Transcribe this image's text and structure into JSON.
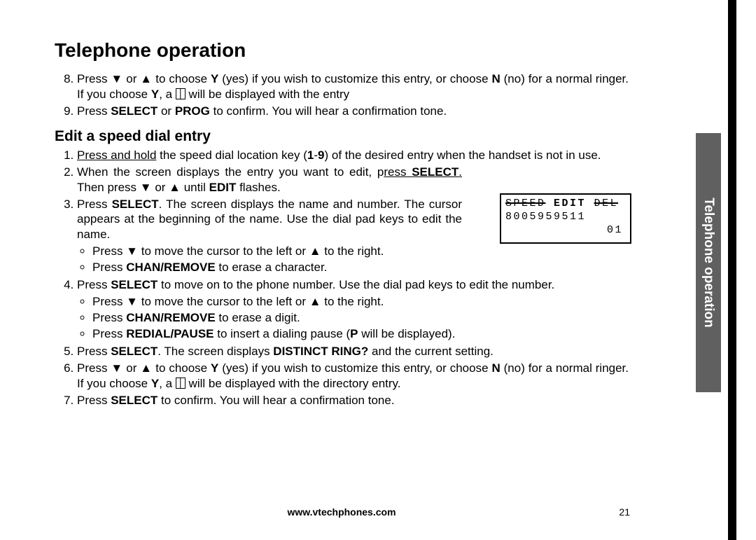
{
  "title": "Telephone operation",
  "tab_label": "Telephone operation",
  "footer_url": "www.vtechphones.com",
  "page_number": "21",
  "top_list": {
    "start": 8,
    "items": [
      "Press ▼ or ▲ to choose <b>Y</b> (yes) if you wish to customize this entry, or choose <b>N</b> (no) for a normal ringer. If you choose <b>Y</b>, a <span class=\"icon-book\" data-name=\"book-icon\" data-interactable=\"false\"></span> will be displayed with the entry",
      "Press <b>SELECT</b> or <b>PROG</b> to confirm. You will hear a confirmation tone."
    ]
  },
  "subhead": "Edit a speed dial entry",
  "steps": [
    {
      "html": "<span class=\"u\">Press and hold</span> the speed dial location key (<b>1</b>-<b>9</b>) of the desired entry when the handset is not in use."
    },
    {
      "html": "<div class=\"step2-wrap\">When the screen displays the entry you want to edit, p<span class=\"u\">ress <b>SELECT</b>.</span> Then press ▼ or ▲ until <b>EDIT</b> flashes.</div>"
    },
    {
      "html": "<div class=\"step3-wrap\">Press <b>SELECT</b>. The screen displays the name and number. The cursor appears at the beginning of the name. Use the dial pad keys to edit the name.</div>",
      "bullets": [
        "Press ▼ to move the cursor to the left or ▲ to the right.",
        "Press <b>CHAN/REMOVE</b> to erase a character."
      ]
    },
    {
      "html": "Press <b>SELECT</b> to move on to the phone number. Use the dial pad keys to edit the number.",
      "bullets": [
        "Press ▼ to move the cursor to the left or ▲ to the right.",
        "Press <b>CHAN/REMOVE</b> to erase a digit.",
        "Press <b>REDIAL/PAUSE</b> to insert a dialing pause (<b>P</b> will be displayed)."
      ]
    },
    {
      "html": "Press <b>SELECT</b>. The screen displays <b>DISTINCT RING?</b> and the current setting."
    },
    {
      "html": "Press ▼ or ▲ to choose <b>Y</b> (yes) if you wish to customize this entry, or choose <b>N</b> (no) for a normal ringer. If you choose <b>Y</b>, a <span class=\"icon-book\" data-name=\"book-icon\" data-interactable=\"false\"></span> will be displayed with the directory entry."
    },
    {
      "html": "Press <b>SELECT</b> to confirm. You will hear a confirmation tone."
    }
  ],
  "lcd": {
    "row1_a": "SPEED",
    "row1_b": "EDIT",
    "row1_c": "DEL",
    "row2": "8005959511",
    "row3": "01"
  }
}
